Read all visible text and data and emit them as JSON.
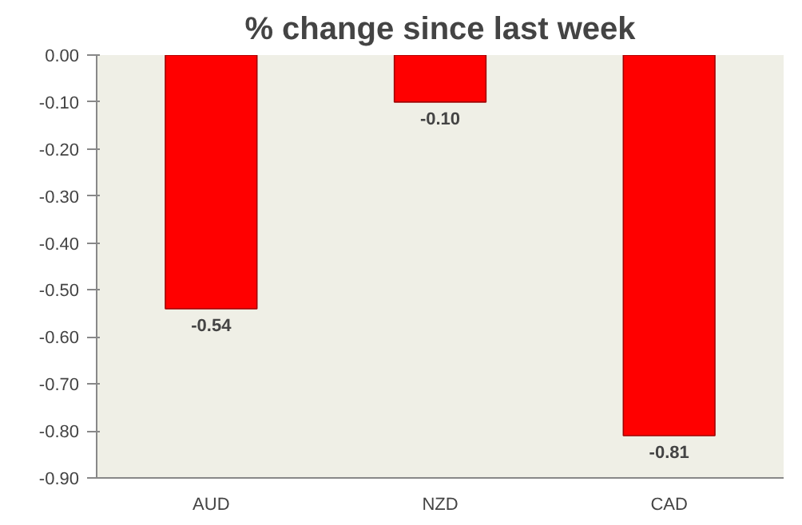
{
  "chart_data": {
    "type": "bar",
    "title": "% change since last week",
    "categories": [
      "AUD",
      "NZD",
      "CAD"
    ],
    "values": [
      -0.54,
      -0.1,
      -0.81
    ],
    "value_labels": [
      "-0.54",
      "-0.10",
      "-0.81"
    ],
    "color": "#ff0000",
    "ylim": [
      -0.9,
      0
    ],
    "yticks": [
      {
        "value": 0,
        "label": "0.00"
      },
      {
        "value": -0.1,
        "label": "-0.10"
      },
      {
        "value": -0.2,
        "label": "-0.20"
      },
      {
        "value": -0.3,
        "label": "-0.30"
      },
      {
        "value": -0.4,
        "label": "-0.40"
      },
      {
        "value": -0.5,
        "label": "-0.50"
      },
      {
        "value": -0.6,
        "label": "-0.60"
      },
      {
        "value": -0.7,
        "label": "-0.70"
      },
      {
        "value": -0.8,
        "label": "-0.80"
      },
      {
        "value": -0.9,
        "label": "-0.90"
      }
    ],
    "grid": false
  }
}
